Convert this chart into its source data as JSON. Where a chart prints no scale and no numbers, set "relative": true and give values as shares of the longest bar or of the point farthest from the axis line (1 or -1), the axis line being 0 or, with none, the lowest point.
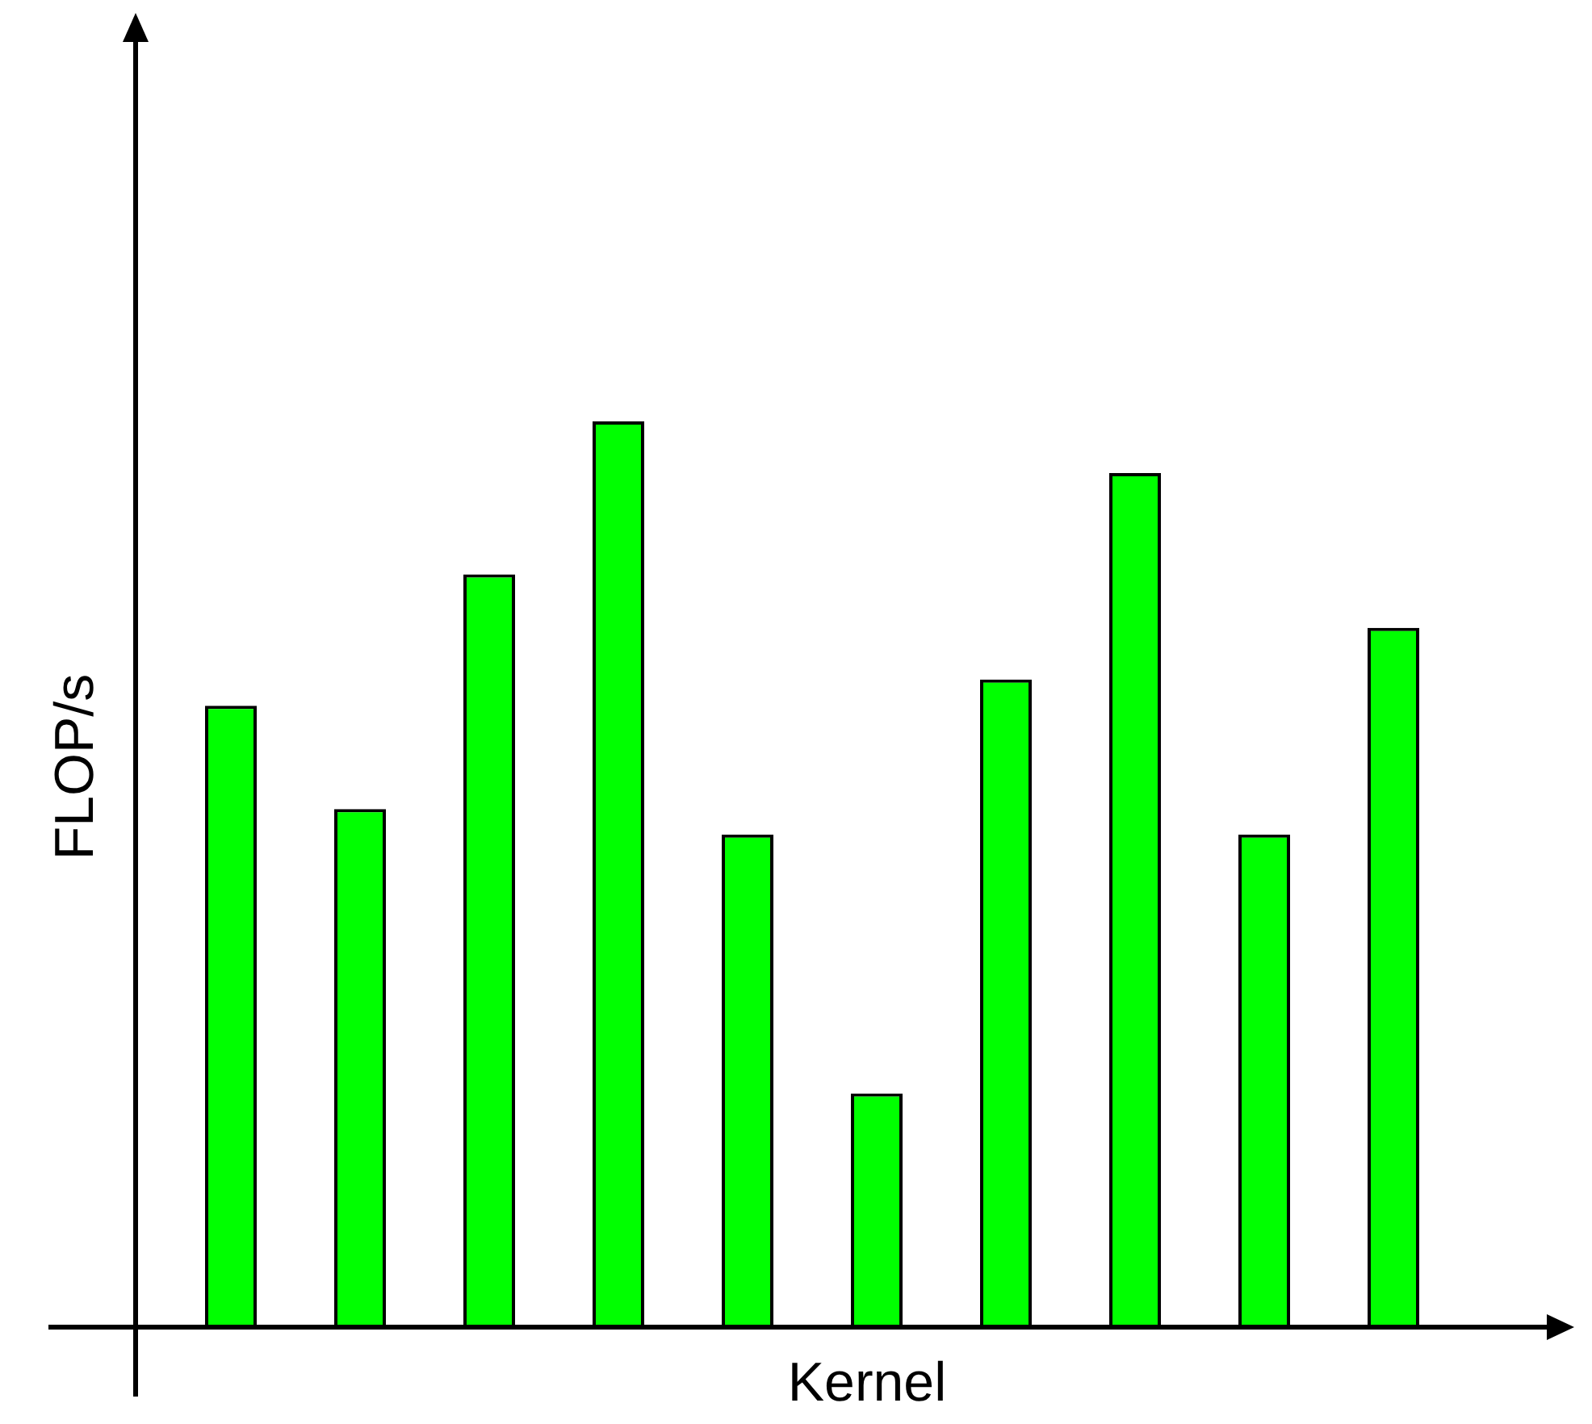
{
  "chart_data": {
    "type": "bar",
    "xlabel": "Kernel",
    "ylabel": "FLOP/s",
    "relative": true,
    "categories": [
      null,
      null,
      null,
      null,
      null,
      null,
      null,
      null,
      null,
      null
    ],
    "values": [
      0.686,
      0.572,
      0.831,
      1,
      0.544,
      0.258,
      0.715,
      0.943,
      0.544,
      0.772
    ],
    "color": "#00ff00"
  }
}
